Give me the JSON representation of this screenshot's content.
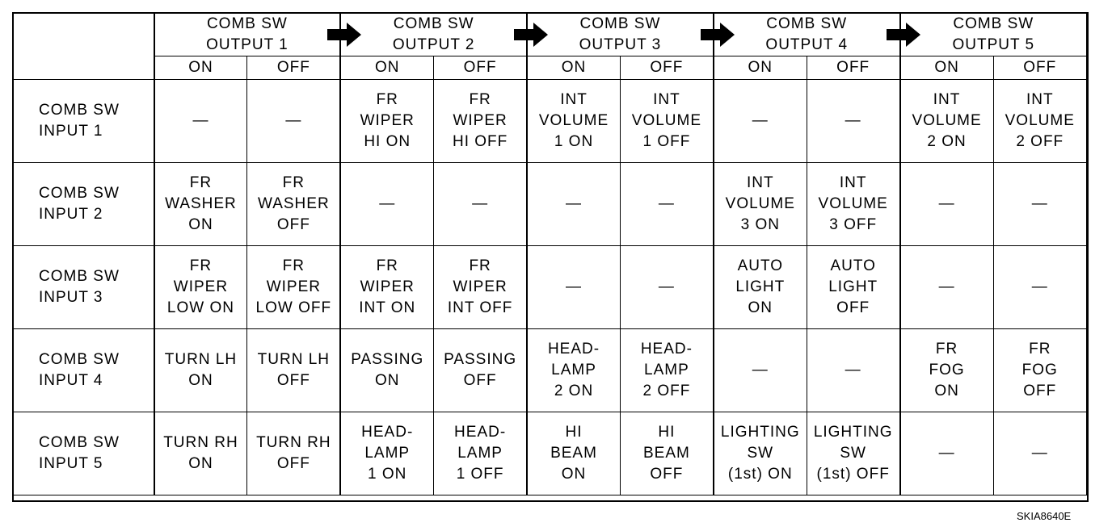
{
  "header": {
    "outputs": [
      "COMB SW\nOUTPUT 1",
      "COMB SW\nOUTPUT 2",
      "COMB SW\nOUTPUT 3",
      "COMB SW\nOUTPUT 4",
      "COMB SW\nOUTPUT 5"
    ],
    "on_label": "ON",
    "off_label": "OFF"
  },
  "rows": [
    {
      "input": "COMB SW\nINPUT 1",
      "cells": [
        "—",
        "—",
        "FR\nWIPER\nHI ON",
        "FR\nWIPER\nHI OFF",
        "INT\nVOLUME\n1 ON",
        "INT\nVOLUME\n1 OFF",
        "—",
        "—",
        "INT\nVOLUME\n2 ON",
        "INT\nVOLUME\n2 OFF"
      ]
    },
    {
      "input": "COMB SW\nINPUT 2",
      "cells": [
        "FR\nWASHER\nON",
        "FR\nWASHER\nOFF",
        "—",
        "—",
        "—",
        "—",
        "INT\nVOLUME\n3 ON",
        "INT\nVOLUME\n3 OFF",
        "—",
        "—"
      ]
    },
    {
      "input": "COMB SW\nINPUT 3",
      "cells": [
        "FR\nWIPER\nLOW ON",
        "FR\nWIPER\nLOW OFF",
        "FR\nWIPER\nINT ON",
        "FR\nWIPER\nINT OFF",
        "—",
        "—",
        "AUTO\nLIGHT\nON",
        "AUTO\nLIGHT\nOFF",
        "—",
        "—"
      ]
    },
    {
      "input": "COMB SW\nINPUT 4",
      "cells": [
        "TURN LH\nON",
        "TURN LH\nOFF",
        "PASSING\nON",
        "PASSING\nOFF",
        "HEAD-\nLAMP\n2 ON",
        "HEAD-\nLAMP\n2 OFF",
        "—",
        "—",
        "FR\nFOG\nON",
        "FR\nFOG\nOFF"
      ]
    },
    {
      "input": "COMB SW\nINPUT 5",
      "cells": [
        "TURN RH\nON",
        "TURN RH\nOFF",
        "HEAD-\nLAMP\n1 ON",
        "HEAD-\nLAMP\n1 OFF",
        "HI\nBEAM\nON",
        "HI\nBEAM\nOFF",
        "LIGHTING\nSW\n(1st) ON",
        "LIGHTING\nSW\n(1st) OFF",
        "—",
        "—"
      ]
    }
  ],
  "arrow_icon": "right-arrow-icon",
  "figure_code": "SKIA8640E"
}
